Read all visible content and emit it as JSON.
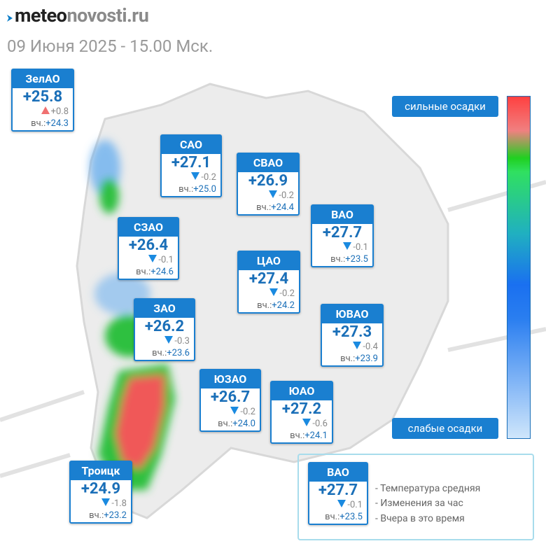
{
  "header": {
    "logo_main": "meteo",
    "logo_domain": "novosti.ru",
    "date": "09 Июня 2025 - 15.00 Мск."
  },
  "yesterday_label": "вч.:",
  "districts": [
    {
      "name": "ЗелАО",
      "temp": "+25.8",
      "change": "+0.8",
      "yesterday": "+24.3"
    },
    {
      "name": "САО",
      "temp": "+27.1",
      "change": "-0.2",
      "yesterday": "+25.0"
    },
    {
      "name": "СВАО",
      "temp": "+26.9",
      "change": "-0.2",
      "yesterday": "+24.4"
    },
    {
      "name": "ВАО",
      "temp": "+27.7",
      "change": "-0.1",
      "yesterday": "+23.5"
    },
    {
      "name": "СЗАО",
      "temp": "+26.4",
      "change": "-0.1",
      "yesterday": "+24.6"
    },
    {
      "name": "ЦАО",
      "temp": "+27.4",
      "change": "-0.2",
      "yesterday": "+24.2"
    },
    {
      "name": "ЗАО",
      "temp": "+26.2",
      "change": "-0.3",
      "yesterday": "+23.6"
    },
    {
      "name": "ЮВАО",
      "temp": "+27.3",
      "change": "-0.4",
      "yesterday": "+23.9"
    },
    {
      "name": "ЮЗАО",
      "temp": "+26.7",
      "change": "-0.2",
      "yesterday": "+24.0"
    },
    {
      "name": "ЮАО",
      "temp": "+27.2",
      "change": "-0.6",
      "yesterday": "+24.1"
    },
    {
      "name": "Троицк",
      "temp": "+24.9",
      "change": "-1.8",
      "yesterday": "+23.2"
    }
  ],
  "scale": {
    "top_label": "сильные осадки",
    "bottom_label": "слабые осадки"
  },
  "legend": {
    "example": {
      "name": "ВАО",
      "temp": "+27.7",
      "change": "-0.1",
      "yesterday": "+23.5"
    },
    "descriptions": [
      "- Температура средняя",
      "- Изменения за час",
      "- Вчера в это время"
    ]
  }
}
